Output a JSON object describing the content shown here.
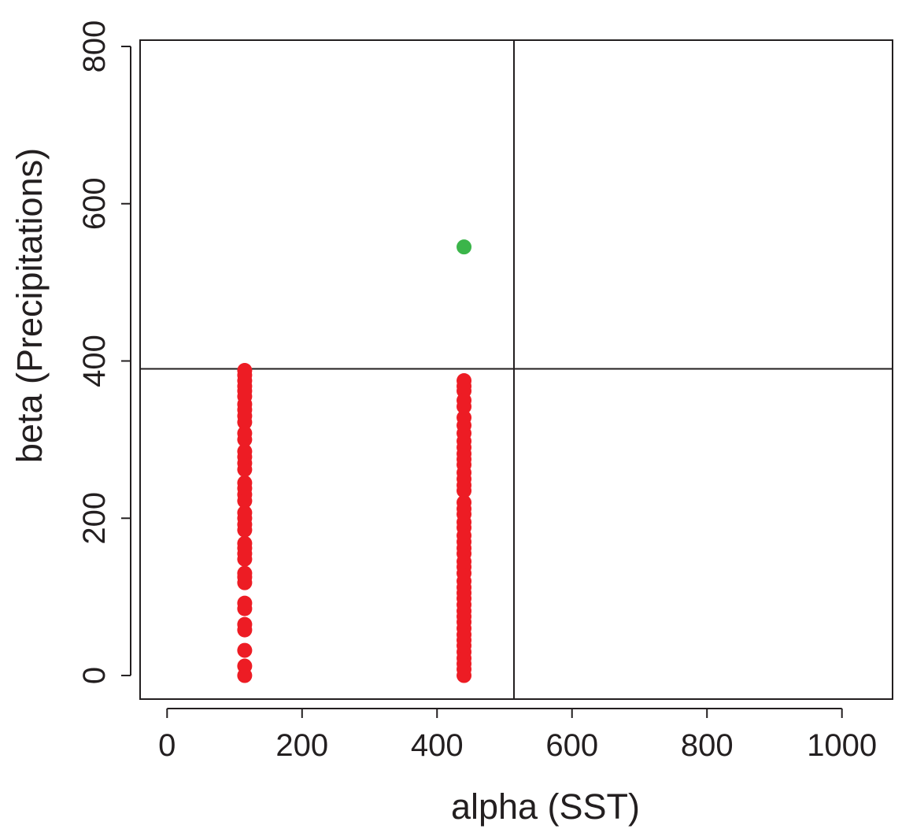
{
  "chart_data": {
    "type": "scatter",
    "title": "",
    "xlabel": "alpha (SST)",
    "ylabel": "beta (Precipitations)",
    "xlim": [
      -40,
      1075
    ],
    "ylim": [
      -30,
      808
    ],
    "x_ticks": [
      0,
      200,
      400,
      600,
      800,
      1000
    ],
    "y_ticks": [
      0,
      200,
      400,
      600,
      800
    ],
    "grid": false,
    "reference_lines": {
      "vertical_x": 514,
      "horizontal_y": 390
    },
    "colors": {
      "red_points": "#ed1c24",
      "green_points": "#3bb54a",
      "axes": "#231f20"
    },
    "series": [
      {
        "color": "#ed1c24",
        "points": [
          [
            115,
            0
          ],
          [
            115,
            12
          ],
          [
            115,
            32
          ],
          [
            115,
            58
          ],
          [
            115,
            65
          ],
          [
            115,
            85
          ],
          [
            115,
            92
          ],
          [
            115,
            118
          ],
          [
            115,
            125
          ],
          [
            115,
            130
          ],
          [
            115,
            148
          ],
          [
            115,
            155
          ],
          [
            115,
            162
          ],
          [
            115,
            168
          ],
          [
            115,
            185
          ],
          [
            115,
            192
          ],
          [
            115,
            200
          ],
          [
            115,
            207
          ],
          [
            115,
            222
          ],
          [
            115,
            230
          ],
          [
            115,
            238
          ],
          [
            115,
            245
          ],
          [
            115,
            262
          ],
          [
            115,
            270
          ],
          [
            115,
            278
          ],
          [
            115,
            285
          ],
          [
            115,
            300
          ],
          [
            115,
            308
          ],
          [
            115,
            322
          ],
          [
            115,
            330
          ],
          [
            115,
            338
          ],
          [
            115,
            345
          ],
          [
            115,
            355
          ],
          [
            115,
            362
          ],
          [
            115,
            368
          ],
          [
            115,
            375
          ],
          [
            115,
            382
          ],
          [
            115,
            388
          ],
          [
            440,
            0
          ],
          [
            440,
            8
          ],
          [
            440,
            15
          ],
          [
            440,
            22
          ],
          [
            440,
            30
          ],
          [
            440,
            38
          ],
          [
            440,
            45
          ],
          [
            440,
            52
          ],
          [
            440,
            60
          ],
          [
            440,
            68
          ],
          [
            440,
            75
          ],
          [
            440,
            82
          ],
          [
            440,
            90
          ],
          [
            440,
            98
          ],
          [
            440,
            105
          ],
          [
            440,
            112
          ],
          [
            440,
            120
          ],
          [
            440,
            130
          ],
          [
            440,
            138
          ],
          [
            440,
            145
          ],
          [
            440,
            155
          ],
          [
            440,
            162
          ],
          [
            440,
            170
          ],
          [
            440,
            178
          ],
          [
            440,
            188
          ],
          [
            440,
            195
          ],
          [
            440,
            205
          ],
          [
            440,
            212
          ],
          [
            440,
            220
          ],
          [
            440,
            235
          ],
          [
            440,
            242
          ],
          [
            440,
            250
          ],
          [
            440,
            258
          ],
          [
            440,
            268
          ],
          [
            440,
            275
          ],
          [
            440,
            282
          ],
          [
            440,
            290
          ],
          [
            440,
            298
          ],
          [
            440,
            308
          ],
          [
            440,
            318
          ],
          [
            440,
            328
          ],
          [
            440,
            342
          ],
          [
            440,
            350
          ],
          [
            440,
            362
          ],
          [
            440,
            368
          ],
          [
            440,
            375
          ]
        ]
      },
      {
        "color": "#3bb54a",
        "points": [
          [
            440,
            545
          ]
        ]
      }
    ]
  }
}
